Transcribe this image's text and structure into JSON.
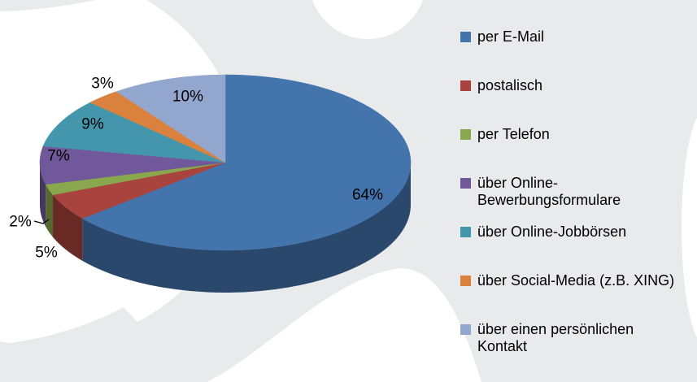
{
  "background": {
    "base_color": "#E9EAEC",
    "decoration_color": "#FFFFFF"
  },
  "chart_data": {
    "type": "pie",
    "style": "3d",
    "title": "",
    "unit": "%",
    "categories": [
      "per E-Mail",
      "postalisch",
      "per Telefon",
      "über Online-Bewerbungsformulare",
      "über Online-Jobbörsen",
      "über Social-Media (z.B. XING)",
      "über einen persönlichen Kontakt"
    ],
    "values": [
      64,
      5,
      2,
      7,
      9,
      3,
      10
    ],
    "data_labels": [
      "64%",
      "5%",
      "2%",
      "7%",
      "9%",
      "3%",
      "10%"
    ],
    "colors": [
      "#4474AC",
      "#A9433E",
      "#89A74C",
      "#71589A",
      "#4496AD",
      "#DA823D",
      "#93A6CD"
    ],
    "start_angle_deg": 0,
    "direction": "clockwise",
    "legend_position": "right",
    "label_color": "#000000"
  },
  "legend": {
    "text_color": "#000000",
    "items": [
      {
        "label": "per E-Mail",
        "lines": [
          "per E-Mail"
        ],
        "color": "#4474AC"
      },
      {
        "label": "postalisch",
        "lines": [
          "postalisch"
        ],
        "color": "#A9433E"
      },
      {
        "label": "per Telefon",
        "lines": [
          "per Telefon"
        ],
        "color": "#89A74C"
      },
      {
        "label": "über Online-Bewerbungsformulare",
        "lines": [
          "über Online-",
          "Bewerbungsformulare"
        ],
        "color": "#71589A"
      },
      {
        "label": "über Online-Jobbörsen",
        "lines": [
          "über Online-Jobbörsen"
        ],
        "color": "#4496AD"
      },
      {
        "label": "über Social-Media (z.B. XING)",
        "lines": [
          "über Social-Media (z.B. XING)"
        ],
        "color": "#DA823D"
      },
      {
        "label": "über einen persönlichen Kontakt",
        "lines": [
          "über einen persönlichen",
          "Kontakt"
        ],
        "color": "#93A6CD"
      }
    ]
  }
}
